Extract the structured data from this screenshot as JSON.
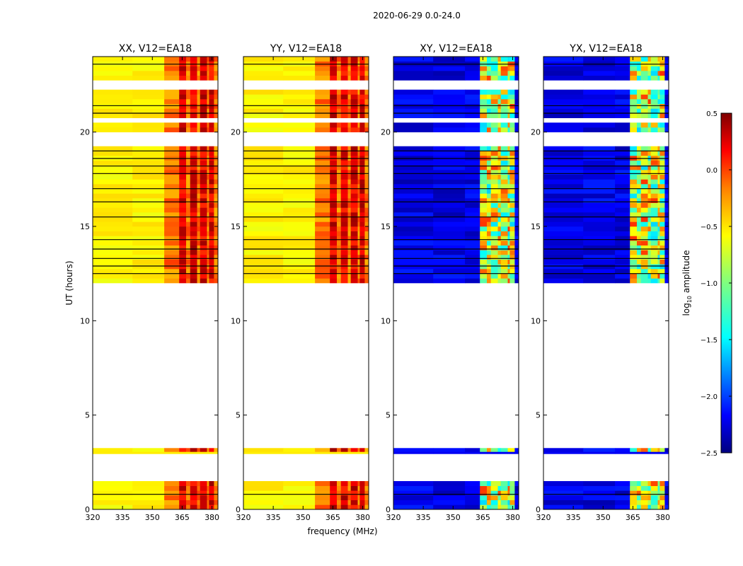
{
  "chart_data": {
    "type": "heatmap",
    "title": "2020-06-29 0.0-24.0",
    "xlabel": "frequency (MHz)",
    "ylabel": "UT (hours)",
    "xlim": [
      320,
      383
    ],
    "ylim": [
      0,
      24
    ],
    "x_ticks": [
      "320",
      "335",
      "350",
      "365",
      "380"
    ],
    "y_ticks": [
      "0",
      "5",
      "10",
      "15",
      "20"
    ],
    "panels": [
      {
        "title": "XX, V12=EA18",
        "pol": "parallel"
      },
      {
        "title": "YY, V12=EA18",
        "pol": "parallel"
      },
      {
        "title": "XY, V12=EA18",
        "pol": "cross"
      },
      {
        "title": "YX, V12=EA18",
        "pol": "cross"
      }
    ],
    "data_time_ranges_hours": [
      [
        0.0,
        1.5
      ],
      [
        2.95,
        3.05
      ],
      [
        12.0,
        24.0
      ]
    ],
    "colorbar": {
      "label": "log10 amplitude",
      "label_base": "log",
      "label_sub": "10",
      "label_rest": " amplitude",
      "range": [
        -2.5,
        0.5
      ],
      "ticks": [
        "0.5",
        "0.0",
        "−0.5",
        "−1.0",
        "−1.5",
        "−2.0",
        "−2.5"
      ],
      "colormap": "jet",
      "colors": [
        "#00007f",
        "#0000ff",
        "#007fff",
        "#00ffff",
        "#7fff7f",
        "#ffff00",
        "#ff7f00",
        "#ff0000",
        "#7f0000"
      ]
    }
  }
}
